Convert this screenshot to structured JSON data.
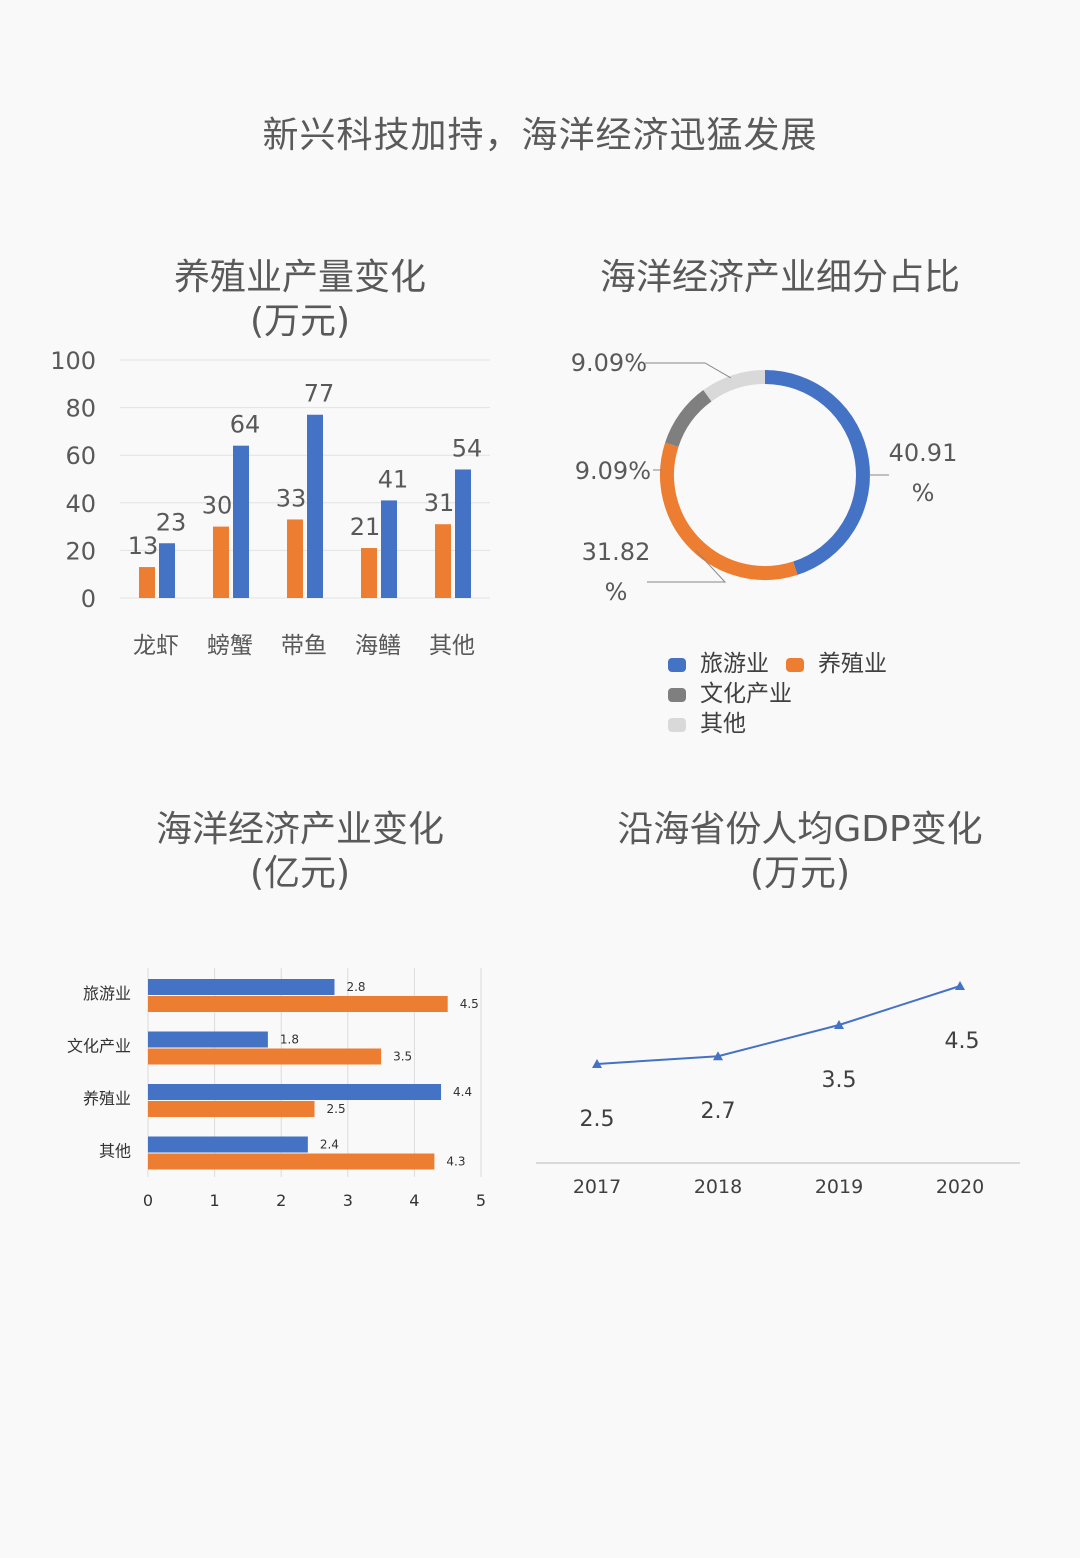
{
  "page": {
    "title": "新兴科技加持，海洋经济迅猛发展"
  },
  "colors": {
    "blue": "#4472c4",
    "orange": "#ed7d31",
    "gray": "#7f7f7f",
    "lightgray": "#d9d9d9"
  },
  "chart_data": [
    {
      "id": "aquaculture",
      "type": "bar",
      "title_line1": "养殖业产量变化",
      "title_line2": "(万元)",
      "categories": [
        "龙虾",
        "螃蟹",
        "带鱼",
        "海鳝",
        "其他"
      ],
      "series": [
        {
          "values": [
            13,
            30,
            33,
            21,
            31
          ],
          "color": "#ed7d31"
        },
        {
          "values": [
            23,
            64,
            77,
            41,
            54
          ],
          "color": "#4472c4"
        }
      ],
      "ylim": [
        0,
        100
      ],
      "yticks": [
        "0",
        "20",
        "40",
        "60",
        "80",
        "100"
      ],
      "grid": true
    },
    {
      "id": "share",
      "type": "pie",
      "title": "海洋经济产业细分占比",
      "slices": [
        {
          "name": "旅游业",
          "value": 40.91,
          "label": "40.91%",
          "color": "#4472c4"
        },
        {
          "name": "养殖业",
          "value": 31.82,
          "label": "31.82%",
          "color": "#ed7d31"
        },
        {
          "name": "文化产业",
          "value": 9.09,
          "label": "9.09%",
          "color": "#7f7f7f"
        },
        {
          "name": "其他",
          "value": 9.09,
          "label": "9.09%",
          "color": "#d9d9d9"
        }
      ],
      "legend_position": "bottom"
    },
    {
      "id": "industry",
      "type": "bar",
      "orientation": "horizontal",
      "title_line1": "海洋经济产业变化",
      "title_line2": "(亿元)",
      "categories": [
        "旅游业",
        "文化产业",
        "养殖业",
        "其他"
      ],
      "series": [
        {
          "values": [
            2.8,
            1.8,
            4.4,
            2.4
          ],
          "color": "#4472c4"
        },
        {
          "values": [
            4.5,
            3.5,
            2.5,
            4.3
          ],
          "color": "#ed7d31"
        }
      ],
      "xlim": [
        0,
        5
      ],
      "xticks": [
        "0",
        "1",
        "2",
        "3",
        "4",
        "5"
      ],
      "grid": true
    },
    {
      "id": "gdp",
      "type": "line",
      "title_line1": "沿海省份人均GDP变化",
      "title_line2": "(万元)",
      "x": [
        "2017",
        "2018",
        "2019",
        "2020"
      ],
      "values": [
        2.5,
        2.7,
        3.5,
        4.5
      ],
      "color": "#4472c4",
      "marker": "triangle",
      "grid": false
    }
  ]
}
